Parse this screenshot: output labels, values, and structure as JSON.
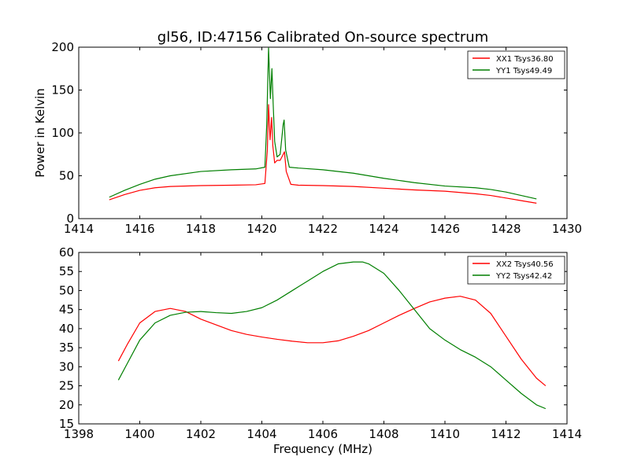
{
  "title": "gl56, ID:47156 Calibrated On-source spectrum",
  "colors": {
    "red": "#ff0000",
    "green": "#007f00"
  },
  "chart_data": [
    {
      "type": "line",
      "title": "gl56, ID:47156 Calibrated On-source spectrum",
      "xlabel": "",
      "ylabel": "Power in Kelvin",
      "xlim": [
        1414,
        1430
      ],
      "ylim": [
        0,
        200
      ],
      "xticks": [
        1414,
        1416,
        1418,
        1420,
        1422,
        1424,
        1426,
        1428,
        1430
      ],
      "yticks": [
        0,
        50,
        100,
        150,
        200
      ],
      "legend_position": "top-right",
      "series": [
        {
          "name": "XX1 Tsys36.80",
          "color": "#ff0000",
          "x": [
            1415.0,
            1415.5,
            1416.0,
            1416.5,
            1417.0,
            1418.0,
            1419.0,
            1419.8,
            1420.1,
            1420.18,
            1420.22,
            1420.27,
            1420.32,
            1420.36,
            1420.42,
            1420.5,
            1420.6,
            1420.7,
            1420.74,
            1420.8,
            1420.95,
            1421.2,
            1422.0,
            1423.0,
            1424.0,
            1425.0,
            1426.0,
            1427.0,
            1427.5,
            1428.0,
            1428.5,
            1429.0
          ],
          "y": [
            22,
            28,
            33,
            36,
            37.5,
            38.5,
            39,
            39.5,
            41,
            80,
            133,
            92,
            118,
            85,
            65,
            68,
            68,
            75,
            78,
            55,
            40,
            39,
            38.5,
            37.5,
            35.5,
            33.5,
            32,
            29,
            27,
            24,
            21,
            18
          ]
        },
        {
          "name": "YY1 Tsys49.49",
          "color": "#007f00",
          "x": [
            1415.0,
            1415.5,
            1416.0,
            1416.5,
            1417.0,
            1418.0,
            1419.0,
            1419.8,
            1420.1,
            1420.16,
            1420.22,
            1420.28,
            1420.33,
            1420.37,
            1420.42,
            1420.5,
            1420.6,
            1420.7,
            1420.73,
            1420.78,
            1420.9,
            1421.2,
            1422.0,
            1423.0,
            1424.0,
            1425.0,
            1426.0,
            1427.0,
            1427.5,
            1428.0,
            1428.5,
            1429.0
          ],
          "y": [
            25,
            33,
            40,
            46,
            50,
            55,
            57,
            58,
            60,
            110,
            199,
            140,
            175,
            135,
            90,
            72,
            75,
            110,
            115,
            80,
            60,
            59,
            57,
            53,
            47,
            42,
            38,
            36,
            34,
            31,
            27,
            23
          ]
        }
      ]
    },
    {
      "type": "line",
      "title": "",
      "xlabel": "Frequency (MHz)",
      "ylabel": "",
      "xlim": [
        1398,
        1414
      ],
      "ylim": [
        15,
        60
      ],
      "xticks": [
        1398,
        1400,
        1402,
        1404,
        1406,
        1408,
        1410,
        1412,
        1414
      ],
      "yticks": [
        15,
        20,
        25,
        30,
        35,
        40,
        45,
        50,
        55,
        60
      ],
      "legend_position": "top-right",
      "series": [
        {
          "name": "XX2 Tsys40.56",
          "color": "#ff0000",
          "x": [
            1399.3,
            1399.6,
            1400.0,
            1400.5,
            1401.0,
            1401.5,
            1402.0,
            1402.5,
            1403.0,
            1403.5,
            1404.0,
            1404.5,
            1405.0,
            1405.5,
            1406.0,
            1406.5,
            1407.0,
            1407.5,
            1408.0,
            1408.5,
            1409.0,
            1409.5,
            1410.0,
            1410.5,
            1411.0,
            1411.5,
            1412.0,
            1412.5,
            1413.0,
            1413.3
          ],
          "y": [
            31.5,
            36,
            41.5,
            44.5,
            45.3,
            44.5,
            42.5,
            41,
            39.5,
            38.5,
            37.8,
            37.2,
            36.7,
            36.3,
            36.3,
            36.8,
            38,
            39.5,
            41.5,
            43.5,
            45.3,
            47,
            48,
            48.5,
            47.5,
            44,
            38,
            32,
            27,
            25
          ]
        },
        {
          "name": "YY2 Tsys42.42",
          "color": "#007f00",
          "x": [
            1399.3,
            1399.6,
            1400.0,
            1400.5,
            1401.0,
            1401.5,
            1402.0,
            1402.5,
            1403.0,
            1403.5,
            1404.0,
            1404.5,
            1405.0,
            1405.5,
            1406.0,
            1406.5,
            1407.0,
            1407.3,
            1407.5,
            1408.0,
            1408.5,
            1409.0,
            1409.5,
            1410.0,
            1410.5,
            1411.0,
            1411.5,
            1412.0,
            1412.5,
            1413.0,
            1413.3
          ],
          "y": [
            26.5,
            31,
            37,
            41.5,
            43.5,
            44.3,
            44.5,
            44.2,
            44,
            44.5,
            45.5,
            47.5,
            50,
            52.5,
            55,
            57,
            57.5,
            57.5,
            57,
            54.5,
            50,
            45,
            40,
            37,
            34.5,
            32.5,
            30,
            26.5,
            23,
            20,
            19
          ]
        }
      ]
    }
  ]
}
